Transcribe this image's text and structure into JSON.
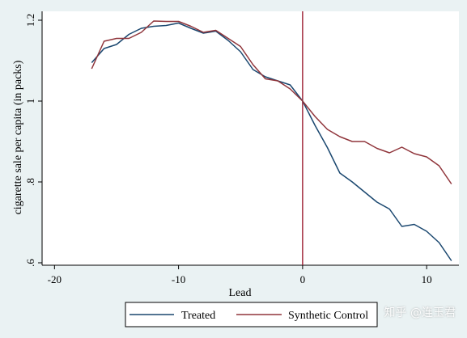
{
  "chart_data": {
    "type": "line",
    "title": "",
    "xlabel": "Lead",
    "ylabel": "cigarette sale per capita (in packs)",
    "xlim": [
      -21,
      12.6
    ],
    "ylim": [
      0.594,
      1.222
    ],
    "xticks": [
      -20,
      -10,
      0,
      10
    ],
    "xtick_labels": [
      "-20",
      "-10",
      "0",
      "10"
    ],
    "yticks": [
      0.6,
      0.8,
      1.0,
      1.2
    ],
    "ytick_labels": [
      ".6",
      ".8",
      "1",
      "1.2"
    ],
    "vline": {
      "x": 0,
      "color": "#9b1c31"
    },
    "grid": false,
    "legend_position": "bottom",
    "series": [
      {
        "name": "Treated",
        "color": "#1a476f",
        "x": [
          -17,
          -16,
          -15,
          -14,
          -13,
          -12,
          -11,
          -10,
          -9,
          -8,
          -7,
          -6,
          -5,
          -4,
          -3,
          -2,
          -1,
          0,
          1,
          2,
          3,
          4,
          5,
          6,
          7,
          8,
          9,
          10,
          11,
          12
        ],
        "values": [
          1.095,
          1.13,
          1.14,
          1.165,
          1.18,
          1.185,
          1.187,
          1.193,
          1.18,
          1.168,
          1.173,
          1.15,
          1.122,
          1.078,
          1.06,
          1.05,
          1.04,
          1.0,
          0.94,
          0.885,
          0.822,
          0.8,
          0.775,
          0.75,
          0.733,
          0.69,
          0.695,
          0.678,
          0.65,
          0.605
        ]
      },
      {
        "name": "Synthetic Control",
        "color": "#90353b",
        "x": [
          -17,
          -16,
          -15,
          -14,
          -13,
          -12,
          -11,
          -10,
          -9,
          -8,
          -7,
          -6,
          -5,
          -4,
          -3,
          -2,
          -1,
          0,
          1,
          2,
          3,
          4,
          5,
          6,
          7,
          8,
          9,
          10,
          11,
          12
        ],
        "values": [
          1.08,
          1.148,
          1.155,
          1.155,
          1.17,
          1.198,
          1.197,
          1.197,
          1.185,
          1.17,
          1.175,
          1.155,
          1.135,
          1.09,
          1.055,
          1.05,
          1.03,
          1.0,
          0.962,
          0.93,
          0.912,
          0.9,
          0.9,
          0.883,
          0.872,
          0.886,
          0.87,
          0.862,
          0.84,
          0.795
        ]
      }
    ]
  },
  "watermark": "知乎 @连玉君"
}
